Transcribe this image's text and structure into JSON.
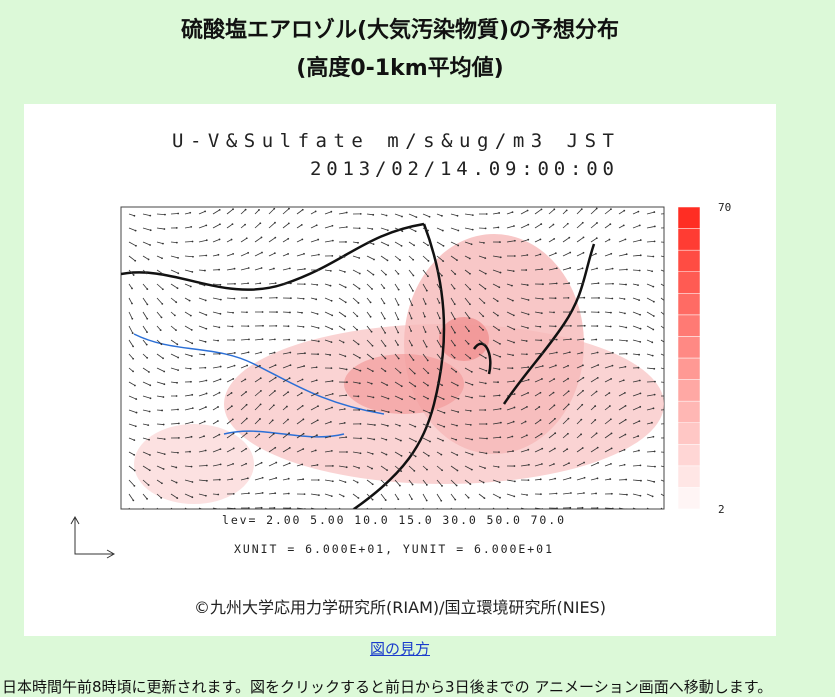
{
  "header": {
    "title_line1": "硫酸塩エアロゾル(大気汚染物質)の予想分布",
    "title_line2": "(高度0-1km平均値)"
  },
  "figure": {
    "plot_title": "U-V&Sulfate m/s&ug/m3     JST",
    "plot_time": "2013/02/14.09:00:00",
    "colorbar_max_label": "70",
    "colorbar_min_label": "2",
    "levels": "lev= 2.00 5.00 10.0 15.0 30.0 50.0 70.0",
    "units": "XUNIT = 6.000E+01, YUNIT = 6.000E+01",
    "credit": "©九州大学応用力学研究所(RIAM)/国立環境研究所(NIES)"
  },
  "link": "図の見方",
  "footer": "日本時間午前8時頃に更新されます。図をクリックすると前日から3日後までの アニメーション画面へ移動します。"
}
